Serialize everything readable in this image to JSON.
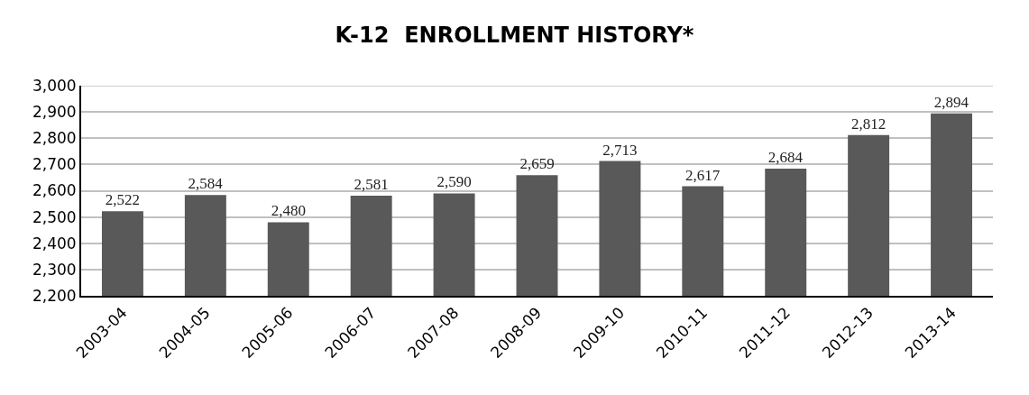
{
  "chart_data": {
    "type": "bar",
    "title": "K-12  ENROLLMENT HISTORY*",
    "categories": [
      "2003-04",
      "2004-05",
      "2005-06",
      "2006-07",
      "2007-08",
      "2008-09",
      "2009-10",
      "2010-11",
      "2011-12",
      "2012-13",
      "2013-14"
    ],
    "values": [
      2522,
      2584,
      2480,
      2581,
      2590,
      2659,
      2713,
      2617,
      2684,
      2812,
      2894
    ],
    "value_labels": [
      "2,522",
      "2,584",
      "2,480",
      "2,581",
      "2,590",
      "2,659",
      "2,713",
      "2,617",
      "2,684",
      "2,812",
      "2,894"
    ],
    "color": "#595959",
    "ylim": [
      2200,
      3000
    ],
    "yticks": [
      {
        "value": 2200,
        "label": "2,200"
      },
      {
        "value": 2300,
        "label": "2,300"
      },
      {
        "value": 2400,
        "label": "2,400"
      },
      {
        "value": 2500,
        "label": "2,500"
      },
      {
        "value": 2600,
        "label": "2,600"
      },
      {
        "value": 2700,
        "label": "2,700"
      },
      {
        "value": 2800,
        "label": "2,800"
      },
      {
        "value": 2900,
        "label": "2,900"
      },
      {
        "value": 3000,
        "label": "3,000"
      }
    ],
    "grid": "y"
  }
}
